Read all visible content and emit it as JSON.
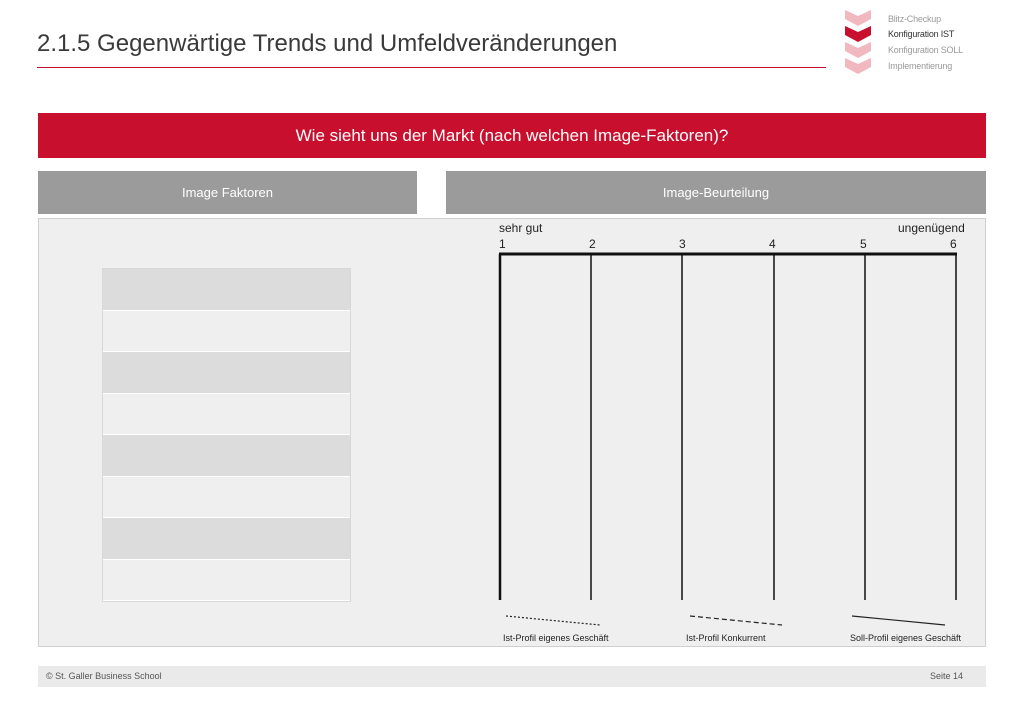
{
  "header": {
    "title": "2.1.5 Gegenwärtige Trends und Umfeldveränderungen"
  },
  "navigator": {
    "steps": [
      {
        "label": "Blitz-Checkup",
        "active": false
      },
      {
        "label": "Konfiguration IST",
        "active": true
      },
      {
        "label": "Konfiguration SOLL",
        "active": false
      },
      {
        "label": "Implementierung",
        "active": false
      }
    ],
    "colors": {
      "active": "#c8102e",
      "inactive": "#f2b8c0"
    }
  },
  "banner": {
    "question": "Wie sieht uns der Markt (nach welchen Image-Faktoren)?"
  },
  "columns": {
    "factors_header": "Image Faktoren",
    "rating_header": "Image-Beurteilung"
  },
  "factor_rows": [
    "",
    "",
    "",
    "",
    "",
    "",
    "",
    ""
  ],
  "scale": {
    "low_label": "sehr gut",
    "high_label": "ungenügend",
    "ticks": [
      "1",
      "2",
      "3",
      "4",
      "5",
      "6"
    ]
  },
  "legend": [
    {
      "label": "Ist-Profil eigenes Geschäft",
      "style": "dotted"
    },
    {
      "label": "Ist-Profil Konkurrent",
      "style": "dashed"
    },
    {
      "label": "Soll-Profil eigenes Geschäft",
      "style": "solid"
    }
  ],
  "footer": {
    "copyright": "© St. Galler Business School",
    "page": "Seite 14"
  },
  "colors": {
    "brand": "#c8102e",
    "header_gray": "#9b9b9b",
    "panel": "#efefef"
  }
}
